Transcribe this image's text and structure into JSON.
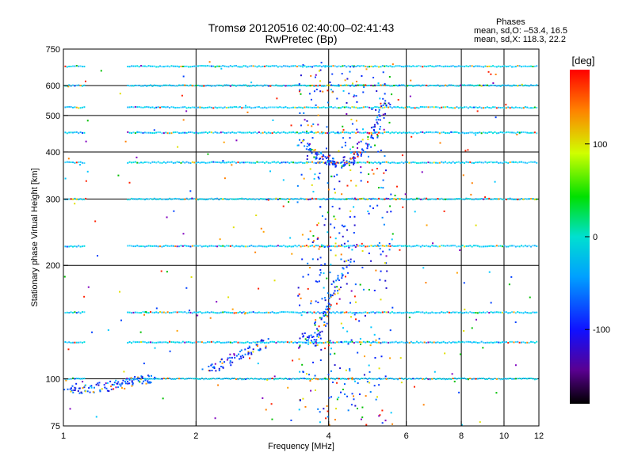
{
  "header": {
    "title_line1": "Tromsø 20120516 02:40:00–02:41:43",
    "title_line2": "RwPretec (Bp)",
    "phases_title": "Phases",
    "phases_line1": "mean, sd,O: –53.4, 16.5",
    "phases_line2": "mean, sd,X: 118.3, 22.2"
  },
  "chart_data": {
    "type": "scatter",
    "xlabel": "Frequency [MHz]",
    "ylabel": "Stationary phase Virtual Height [km]",
    "xscale": "log",
    "yscale": "log",
    "xlim": [
      1,
      12
    ],
    "ylim": [
      75,
      750
    ],
    "xticks": [
      1,
      2,
      4,
      6,
      8,
      10,
      12
    ],
    "yticks": [
      75,
      100,
      200,
      300,
      400,
      500,
      600,
      750
    ],
    "colorbar": {
      "label": "[deg]",
      "ticks": [
        100,
        0,
        -100
      ],
      "range": [
        -180,
        180
      ]
    },
    "range_gates_km": [
      75,
      100,
      125,
      150,
      225,
      300,
      375,
      450,
      525,
      600,
      675
    ],
    "band_x_ranges_mhz": [
      [
        1.0,
        1.12
      ],
      [
        1.4,
        11.9
      ]
    ],
    "echo_traces": [
      {
        "name": "low E trace",
        "x": [
          1.02,
          1.1,
          1.2,
          1.3,
          1.4,
          1.5,
          1.6
        ],
        "y": [
          95,
          94,
          95,
          96,
          97,
          99,
          100
        ]
      },
      {
        "name": "F-region O trace",
        "x": [
          3.5,
          3.7,
          3.9,
          4.1,
          4.4,
          4.7,
          5.0,
          5.2,
          5.4
        ],
        "y": [
          430,
          400,
          385,
          375,
          378,
          395,
          430,
          480,
          560
        ]
      },
      {
        "name": "F-region lower echoes",
        "x": [
          3.5,
          3.7,
          3.9,
          4.0,
          4.2,
          4.5
        ],
        "y": [
          130,
          125,
          140,
          160,
          180,
          210
        ]
      },
      {
        "name": "sporadic echoes 2-3 MHz",
        "x": [
          2.1,
          2.3,
          2.5,
          2.7,
          2.9
        ],
        "y": [
          105,
          110,
          115,
          120,
          125
        ]
      }
    ]
  }
}
